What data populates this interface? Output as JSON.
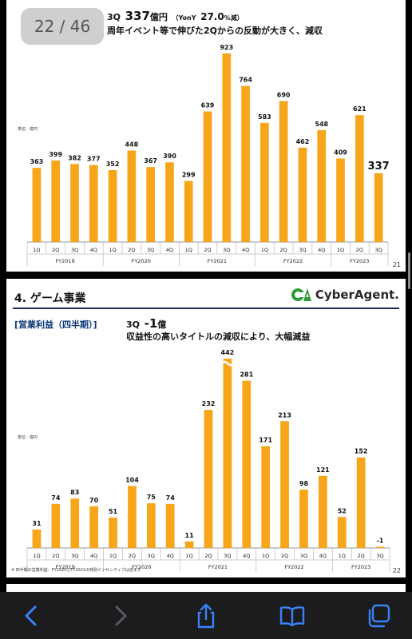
{
  "viewer": {
    "page_indicator": "22 / 46"
  },
  "slide1": {
    "headline_quarter": "3Q",
    "headline_value": "337",
    "headline_unit": "億円",
    "headline_yoy": "（YonY",
    "headline_pct": "27.0",
    "headline_pct_unit": "%減）",
    "subline": "周年イベント等で伸びた2Qからの反動が大きく、減収",
    "unit_label": "単位：億円",
    "page_number": "21",
    "chart_data": {
      "type": "bar",
      "categories": [
        "1Q",
        "2Q",
        "3Q",
        "4Q",
        "1Q",
        "2Q",
        "3Q",
        "4Q",
        "1Q",
        "2Q",
        "3Q",
        "4Q",
        "1Q",
        "2Q",
        "3Q",
        "4Q",
        "1Q",
        "2Q",
        "3Q"
      ],
      "values": [
        363,
        399,
        382,
        377,
        352,
        448,
        367,
        390,
        299,
        639,
        923,
        764,
        583,
        690,
        462,
        548,
        409,
        621,
        337
      ],
      "value_labels": [
        "363",
        "399",
        "382",
        "377",
        "352",
        "448",
        "367",
        "390",
        "299",
        "639",
        "923",
        "764",
        "583",
        "690",
        "462",
        "548",
        "409",
        "621",
        "337"
      ],
      "groups": [
        {
          "label": "FY2019",
          "start": 0,
          "count": 4
        },
        {
          "label": "FY2020",
          "start": 4,
          "count": 4
        },
        {
          "label": "FY2021",
          "start": 8,
          "count": 4
        },
        {
          "label": "FY2022",
          "start": 12,
          "count": 4
        },
        {
          "label": "FY2023",
          "start": 16,
          "count": 3
        }
      ],
      "ylim": [
        0,
        950
      ],
      "bar_color": "#F7A51B",
      "highlight_last": true
    }
  },
  "slide2": {
    "section_title": "4. ゲーム事業",
    "logo_text": "CyberAgent.",
    "bracket_label": "[営業利益（四半期）]",
    "headline_quarter": "3Q",
    "headline_value": "-1",
    "headline_unit": "億",
    "subline": "収益性の高いタイトルの減収により、大幅減益",
    "unit_label": "単位：億円",
    "footnote": "※ 四半期の営業利益：FY2020とFY2021の特別インセンティブは含まず",
    "page_number": "22",
    "chart_data": {
      "type": "bar",
      "categories": [
        "1Q",
        "2Q",
        "3Q",
        "4Q",
        "1Q",
        "2Q",
        "3Q",
        "4Q",
        "1Q",
        "2Q",
        "3Q",
        "4Q",
        "1Q",
        "2Q",
        "3Q",
        "4Q",
        "1Q",
        "2Q",
        "3Q"
      ],
      "values": [
        31,
        74,
        83,
        70,
        51,
        104,
        75,
        74,
        11,
        232,
        442,
        281,
        171,
        213,
        98,
        121,
        52,
        152,
        -1
      ],
      "value_labels": [
        "31",
        "74",
        "83",
        "70",
        "51",
        "104",
        "75",
        "74",
        "11",
        "232",
        "442",
        "281",
        "171",
        "213",
        "98",
        "121",
        "52",
        "152",
        "-1"
      ],
      "groups": [
        {
          "label": "FY2019",
          "start": 0,
          "count": 4
        },
        {
          "label": "FY2020",
          "start": 4,
          "count": 4
        },
        {
          "label": "FY2021",
          "start": 8,
          "count": 4
        },
        {
          "label": "FY2022",
          "start": 12,
          "count": 4
        },
        {
          "label": "FY2023",
          "start": 16,
          "count": 3
        }
      ],
      "ylim": [
        -5,
        310
      ],
      "axis_break_index": 10,
      "bar_color": "#F7A51B",
      "brand_color": "#2E9A3A"
    }
  },
  "toolbar": {
    "back_icon": "chevron-left-icon",
    "forward_icon": "chevron-right-icon",
    "share_icon": "share-icon",
    "bookmarks_icon": "book-icon",
    "tabs_icon": "tabs-icon"
  }
}
